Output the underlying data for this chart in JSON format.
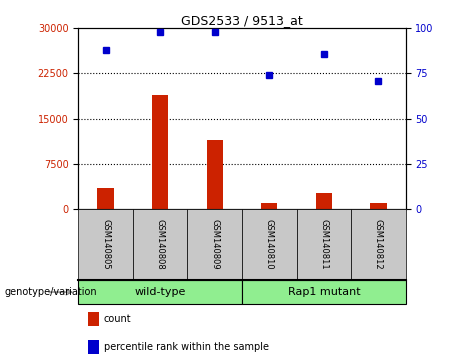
{
  "title": "GDS2533 / 9513_at",
  "samples": [
    "GSM140805",
    "GSM140808",
    "GSM140809",
    "GSM140810",
    "GSM140811",
    "GSM140812"
  ],
  "counts": [
    3500,
    19000,
    11500,
    900,
    2700,
    1000
  ],
  "percentile_ranks": [
    88,
    98,
    98,
    74,
    86,
    71
  ],
  "groups": [
    {
      "label": "wild-type",
      "start": 0,
      "end": 2,
      "color": "#90EE90"
    },
    {
      "label": "Rap1 mutant",
      "start": 3,
      "end": 5,
      "color": "#4CBB4C"
    }
  ],
  "bar_color": "#CC2200",
  "dot_color": "#0000CC",
  "left_yaxis": {
    "min": 0,
    "max": 30000,
    "ticks": [
      0,
      7500,
      15000,
      22500,
      30000
    ],
    "color": "#CC2200"
  },
  "right_yaxis": {
    "min": 0,
    "max": 100,
    "ticks": [
      0,
      25,
      50,
      75,
      100
    ],
    "color": "#0000CC"
  },
  "grid_ticks": [
    7500,
    15000,
    22500
  ],
  "annotation_label": "genotype/variation",
  "legend_count_label": "count",
  "legend_percentile_label": "percentile rank within the sample",
  "sample_box_color": "#c8c8c8",
  "green_light": "#90EE90",
  "green_dark": "#3CB83C"
}
